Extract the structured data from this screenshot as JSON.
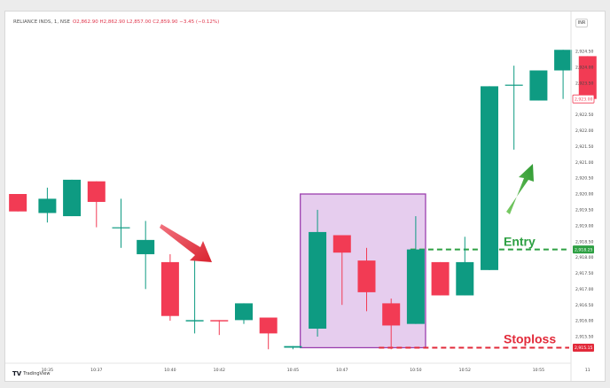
{
  "header": {
    "symbol": "RELIANCE INDS, 1, NSE",
    "ohlc": "O2,862.90 H2,862.90 L2,857.00 C2,859.90 −3.45 (−0.12%)"
  },
  "currency_label": "INR",
  "price_tags": {
    "last": "2,923.00",
    "entry": "2,918.25",
    "stoploss": "2,915.15"
  },
  "annotations": {
    "entry_label": "Entry",
    "stoploss_label": "Stoploss"
  },
  "branding": {
    "logo_mark": "𝗧𝗩",
    "logo_text": "TradingView"
  },
  "colors": {
    "up": "#0e9b82",
    "down": "#f23b54",
    "entry": "#2ea043",
    "stoploss": "#e22a3a",
    "highlight_fill": "#e6cdee",
    "highlight_border": "#9b3fae",
    "arrow_red": "#e63646",
    "arrow_green": "#3aa53a"
  },
  "chart_data": {
    "type": "candlestick",
    "ylim": [
      2914.8,
      2925.2
    ],
    "y_ticks": [
      {
        "value": 2924.5,
        "label": "2,924.50"
      },
      {
        "value": 2924.0,
        "label": "2,924.00"
      },
      {
        "value": 2923.5,
        "label": "2,923.50"
      },
      {
        "value": 2922.5,
        "label": "2,922.50"
      },
      {
        "value": 2922.0,
        "label": "2,922.00"
      },
      {
        "value": 2921.5,
        "label": "2,921.50"
      },
      {
        "value": 2921.0,
        "label": "2,921.00"
      },
      {
        "value": 2920.5,
        "label": "2,920.50"
      },
      {
        "value": 2920.0,
        "label": "2,920.00"
      },
      {
        "value": 2919.5,
        "label": "2,919.50"
      },
      {
        "value": 2919.0,
        "label": "2,919.00"
      },
      {
        "value": 2918.5,
        "label": "2,918.50"
      },
      {
        "value": 2918.0,
        "label": "2,918.00"
      },
      {
        "value": 2917.5,
        "label": "2,917.50"
      },
      {
        "value": 2917.0,
        "label": "2,917.00"
      },
      {
        "value": 2916.5,
        "label": "2,916.50"
      },
      {
        "value": 2916.0,
        "label": "2,916.00"
      },
      {
        "value": 2915.5,
        "label": "2,915.50"
      }
    ],
    "x_ticks": [
      {
        "index": 0.7,
        "label": "10:35"
      },
      {
        "index": 2.7,
        "label": "10:37"
      },
      {
        "index": 5.7,
        "label": "10:40"
      },
      {
        "index": 7.7,
        "label": "10:42"
      },
      {
        "index": 10.7,
        "label": "10:45"
      },
      {
        "index": 12.7,
        "label": "10:47"
      },
      {
        "index": 15.7,
        "label": "10:50"
      },
      {
        "index": 17.7,
        "label": "10:52"
      },
      {
        "index": 20.7,
        "label": "10:55"
      },
      {
        "index": 22.7,
        "label": "11"
      }
    ],
    "candles": [
      {
        "i": -0.5,
        "o": 2920.0,
        "h": 2920.0,
        "l": 2919.45,
        "c": 2919.45
      },
      {
        "i": 0.7,
        "o": 2919.4,
        "h": 2920.2,
        "l": 2919.1,
        "c": 2919.85
      },
      {
        "i": 1.7,
        "o": 2919.3,
        "h": 2920.45,
        "l": 2919.3,
        "c": 2920.45
      },
      {
        "i": 2.7,
        "o": 2920.4,
        "h": 2920.4,
        "l": 2918.95,
        "c": 2919.75
      },
      {
        "i": 3.7,
        "o": 2918.95,
        "h": 2919.85,
        "l": 2918.3,
        "c": 2918.95
      },
      {
        "i": 4.7,
        "o": 2918.1,
        "h": 2919.15,
        "l": 2917.0,
        "c": 2918.55
      },
      {
        "i": 5.7,
        "o": 2917.85,
        "h": 2918.1,
        "l": 2916.0,
        "c": 2916.15
      },
      {
        "i": 6.7,
        "o": 2915.98,
        "h": 2917.9,
        "l": 2915.6,
        "c": 2916.02
      },
      {
        "i": 7.7,
        "o": 2916.02,
        "h": 2916.02,
        "l": 2915.55,
        "c": 2915.98
      },
      {
        "i": 8.7,
        "o": 2916.02,
        "h": 2916.55,
        "l": 2915.9,
        "c": 2916.55
      },
      {
        "i": 9.7,
        "o": 2916.1,
        "h": 2916.1,
        "l": 2915.1,
        "c": 2915.6
      },
      {
        "i": 10.7,
        "o": 2915.15,
        "h": 2915.2,
        "l": 2915.1,
        "c": 2915.2
      },
      {
        "i": 11.7,
        "o": 2915.75,
        "h": 2919.5,
        "l": 2915.5,
        "c": 2918.8
      },
      {
        "i": 12.7,
        "o": 2918.7,
        "h": 2918.7,
        "l": 2916.5,
        "c": 2918.15
      },
      {
        "i": 13.7,
        "o": 2917.9,
        "h": 2918.3,
        "l": 2916.3,
        "c": 2916.9
      },
      {
        "i": 14.7,
        "o": 2916.55,
        "h": 2916.7,
        "l": 2915.1,
        "c": 2915.85
      },
      {
        "i": 15.7,
        "o": 2915.9,
        "h": 2919.3,
        "l": 2915.9,
        "c": 2918.25
      },
      {
        "i": 16.7,
        "o": 2917.85,
        "h": 2917.85,
        "l": 2916.8,
        "c": 2916.8
      },
      {
        "i": 17.7,
        "o": 2916.8,
        "h": 2918.65,
        "l": 2916.8,
        "c": 2917.85
      },
      {
        "i": 18.7,
        "o": 2917.6,
        "h": 2923.4,
        "l": 2917.6,
        "c": 2923.4
      },
      {
        "i": 19.7,
        "o": 2923.45,
        "h": 2924.05,
        "l": 2921.4,
        "c": 2923.45
      },
      {
        "i": 20.7,
        "o": 2922.95,
        "h": 2923.9,
        "l": 2922.95,
        "c": 2923.9
      },
      {
        "i": 21.7,
        "o": 2923.9,
        "h": 2924.55,
        "l": 2923.0,
        "c": 2924.55
      },
      {
        "i": 22.7,
        "o": 2924.35,
        "h": 2924.35,
        "l": 2923.0,
        "c": 2923.0
      }
    ],
    "entry_level": 2918.25,
    "stoploss_level": 2915.15,
    "highlight": {
      "x_from": 11.0,
      "x_to": 16.1,
      "y_from": 2915.15,
      "y_to": 2920.0
    }
  }
}
